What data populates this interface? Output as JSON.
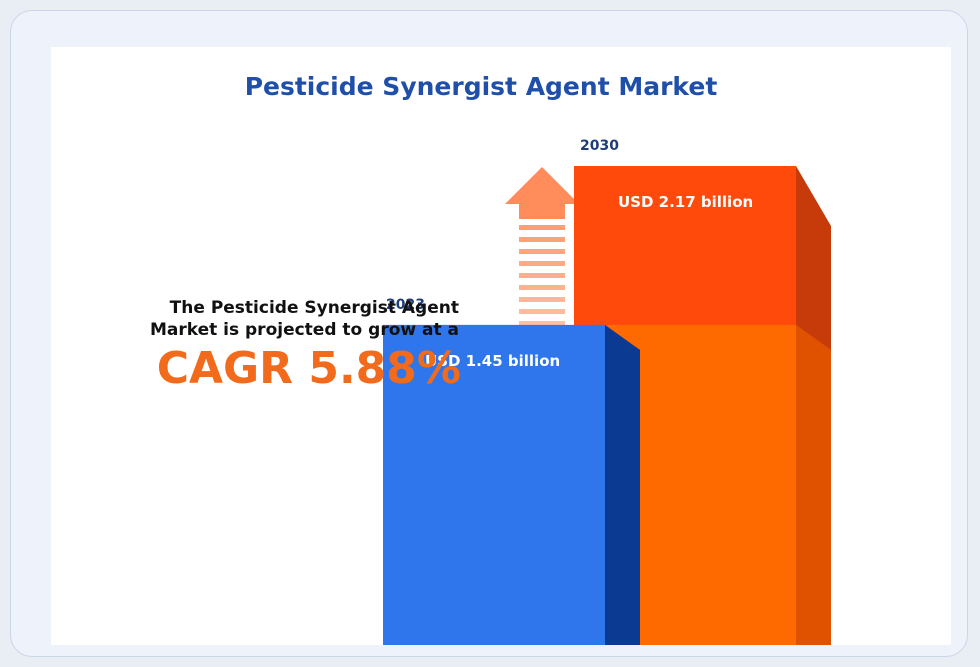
{
  "chart_data": {
    "type": "bar",
    "title": "Pesticide Synergist Agent Market",
    "categories": [
      "2023",
      "2030"
    ],
    "values": [
      1.45,
      2.17
    ],
    "value_labels": [
      "USD 1.45 billion",
      "USD 2.17 billion"
    ],
    "unit": "USD billion",
    "bar_colors": [
      "#2f75ec",
      "#ff4a0c"
    ]
  },
  "description": {
    "line1": "The Pesticide Synergist Agent",
    "line2": "Market is projected to grow at a",
    "cagr": "CAGR 5.88%"
  },
  "colors": {
    "title": "#1f4fa8",
    "cagr": "#f26a1b",
    "arrow": "#ff8c5a"
  }
}
